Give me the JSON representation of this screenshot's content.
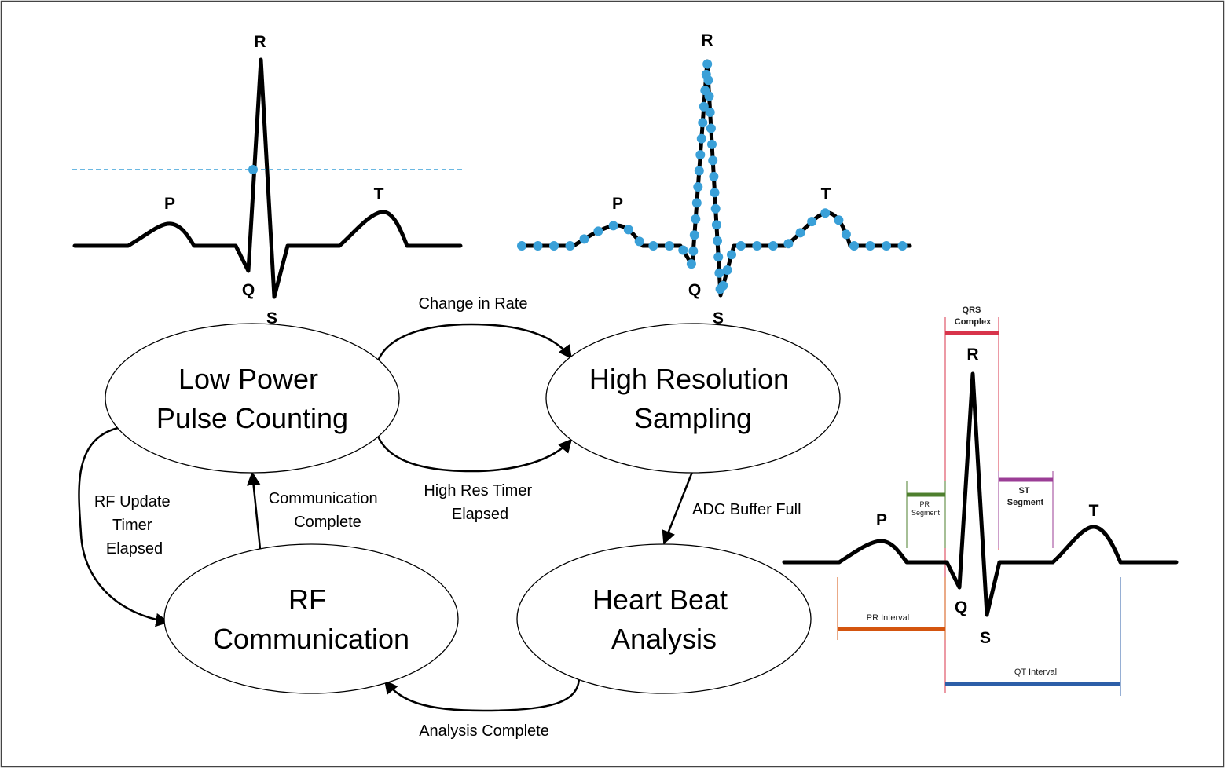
{
  "states": {
    "low_power": [
      "Low Power",
      "Pulse Counting"
    ],
    "high_res": [
      "High Resolution",
      "Sampling"
    ],
    "rf": [
      "RF",
      "Communication"
    ],
    "heart_beat": [
      "Heart Beat",
      "Analysis"
    ]
  },
  "transitions": {
    "change_in_rate": [
      "Change in Rate"
    ],
    "high_res_timer": [
      "High Res Timer",
      "Elapsed"
    ],
    "adc_buffer_full": [
      "ADC Buffer Full"
    ],
    "analysis_complete": [
      "Analysis Complete"
    ],
    "comm_complete": [
      "Communication",
      "Complete"
    ],
    "rf_update_timer": [
      "RF Update",
      "Timer",
      "Elapsed"
    ]
  },
  "waveform_left": {
    "labels": {
      "r": "R",
      "p": "P",
      "t": "T",
      "q": "Q",
      "s": "S"
    }
  },
  "waveform_center": {
    "labels": {
      "r": "R",
      "p": "P",
      "t": "T",
      "q": "Q",
      "s": "S"
    }
  },
  "waveform_right": {
    "labels": {
      "r": "R",
      "p": "P",
      "t": "T",
      "q": "Q",
      "s": "S"
    },
    "qrs_complex": [
      "QRS",
      "Complex"
    ],
    "pr_segment": [
      "PR",
      "Segment"
    ],
    "st_segment": [
      "ST",
      "Segment"
    ],
    "pr_interval": "PR Interval",
    "qt_interval": "QT Interval"
  },
  "colors": {
    "threshold": "#3aa0d8",
    "sample_dot": "#3aa0d8",
    "qrs": "#d8344b",
    "pr_segment": "#4e7f2e",
    "st_segment": "#9b3d96",
    "pr_interval": "#d4550f",
    "qt_interval": "#2d5fa8"
  }
}
